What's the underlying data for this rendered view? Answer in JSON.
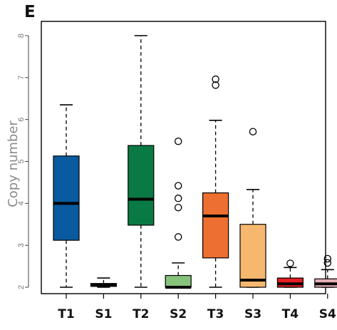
{
  "panel_letter": "E",
  "chart_data": {
    "type": "box",
    "title": "",
    "xlabel": "",
    "ylabel": "Copy number",
    "ylim": [
      2,
      8
    ],
    "yticks": [
      2,
      3,
      4,
      5,
      6,
      7,
      8
    ],
    "categories": [
      "T1",
      "S1",
      "T2",
      "S2",
      "T3",
      "S3",
      "T4",
      "S4"
    ],
    "boxes": [
      {
        "name": "T1",
        "color": "#0a5a9f",
        "whisker_low": 2.0,
        "q1": 3.12,
        "median": 4.0,
        "q3": 5.13,
        "whisker_high": 6.35,
        "outliers": []
      },
      {
        "name": "S1",
        "color": "#222222",
        "whisker_low": 2.0,
        "q1": 2.02,
        "median": 2.05,
        "q3": 2.09,
        "whisker_high": 2.22,
        "outliers": []
      },
      {
        "name": "T2",
        "color": "#0a7a44",
        "whisker_low": 2.0,
        "q1": 3.48,
        "median": 4.1,
        "q3": 5.38,
        "whisker_high": 8.0,
        "outliers": []
      },
      {
        "name": "S2",
        "color": "#86c27a",
        "whisker_low": 2.0,
        "q1": 2.0,
        "median": 2.0,
        "q3": 2.28,
        "whisker_high": 2.58,
        "outliers": [
          3.2,
          3.9,
          4.12,
          4.42,
          5.48
        ]
      },
      {
        "name": "T3",
        "color": "#ed6f32",
        "whisker_low": 2.0,
        "q1": 2.7,
        "median": 3.7,
        "q3": 4.25,
        "whisker_high": 5.98,
        "outliers": [
          6.82,
          6.96
        ]
      },
      {
        "name": "S3",
        "color": "#f6b86e",
        "whisker_low": 2.0,
        "q1": 2.0,
        "median": 2.17,
        "q3": 3.5,
        "whisker_high": 4.33,
        "outliers": [
          5.71
        ]
      },
      {
        "name": "T4",
        "color": "#e31d23",
        "whisker_low": 2.0,
        "q1": 2.0,
        "median": 2.08,
        "q3": 2.22,
        "whisker_high": 2.47,
        "outliers": [
          2.57
        ]
      },
      {
        "name": "S4",
        "color": "#e7aeb6",
        "whisker_low": 2.0,
        "q1": 2.0,
        "median": 2.08,
        "q3": 2.2,
        "whisker_high": 2.42,
        "outliers": [
          2.58,
          2.68
        ]
      }
    ]
  }
}
